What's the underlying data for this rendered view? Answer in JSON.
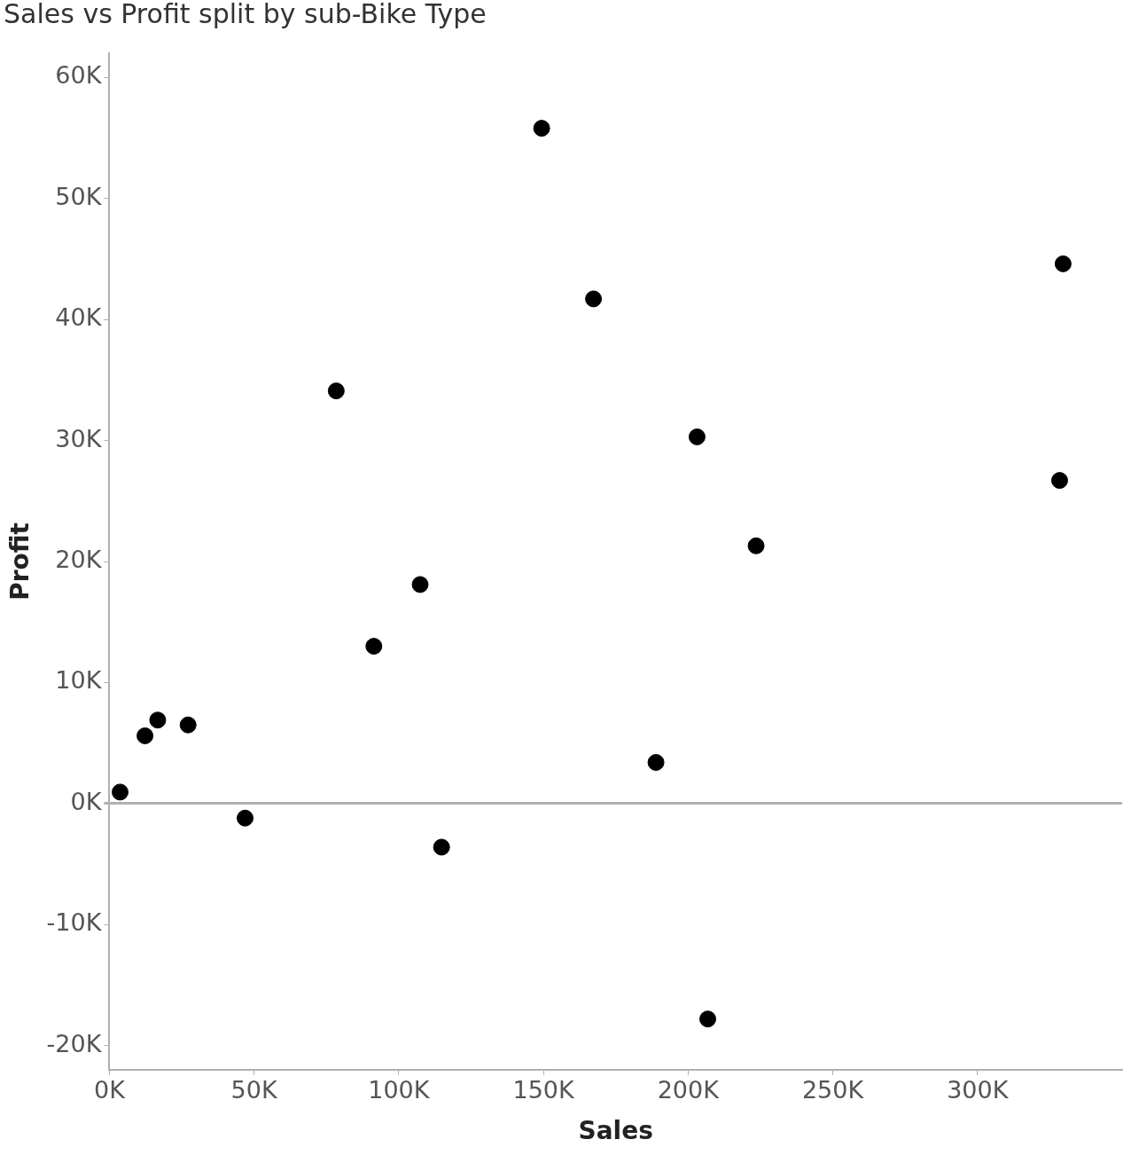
{
  "chart_data": {
    "type": "scatter",
    "title": "Sales vs Profit split by sub-Bike Type",
    "x_label": "Sales",
    "y_label": "Profit",
    "x": [
      149400,
      167300,
      329600,
      78400,
      203100,
      328400,
      223500,
      107400,
      91400,
      16700,
      27200,
      12300,
      3700,
      46900,
      114800,
      188900,
      206800
    ],
    "values": [
      55800,
      41700,
      44600,
      34100,
      30300,
      26700,
      21300,
      18100,
      13000,
      6900,
      6500,
      5600,
      950,
      -1200,
      -3600,
      3400,
      -17800
    ],
    "color": "#000000",
    "marker": "circle",
    "grid": false,
    "xlim": [
      0,
      350000
    ],
    "xticks": [
      {
        "value": 0,
        "label": "0K"
      },
      {
        "value": 50000,
        "label": "50K"
      },
      {
        "value": 100000,
        "label": "100K"
      },
      {
        "value": 150000,
        "label": "150K"
      },
      {
        "value": 200000,
        "label": "200K"
      },
      {
        "value": 250000,
        "label": "250K"
      },
      {
        "value": 300000,
        "label": "300K"
      }
    ],
    "ylim": [
      -22000,
      62000
    ],
    "yticks": [
      {
        "value": -20000,
        "label": "-20K"
      },
      {
        "value": -10000,
        "label": "-10K"
      },
      {
        "value": 0,
        "label": "0K"
      },
      {
        "value": 10000,
        "label": "10K"
      },
      {
        "value": 20000,
        "label": "20K"
      },
      {
        "value": 30000,
        "label": "30K"
      },
      {
        "value": 40000,
        "label": "40K"
      },
      {
        "value": 50000,
        "label": "50K"
      },
      {
        "value": 60000,
        "label": "60K"
      }
    ]
  }
}
